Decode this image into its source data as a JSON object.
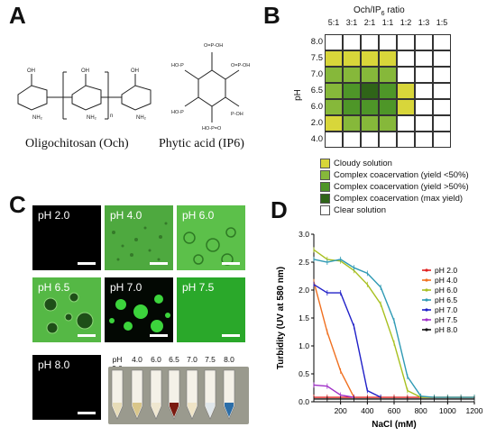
{
  "panels": {
    "a": "A",
    "b": "B",
    "c": "C",
    "d": "D"
  },
  "panel_a": {
    "och_caption": "Oligochitosan (Och)",
    "ip6_caption": "Phytic acid (IP6)"
  },
  "panel_b": {
    "title_prefix": "Och/IP",
    "title_sub": "6",
    "title_suffix": " ratio",
    "columns": [
      "5:1",
      "3:1",
      "2:1",
      "1:1",
      "1:2",
      "1:3",
      "1:5"
    ],
    "rows": [
      "8.0",
      "7.5",
      "7.0",
      "6.5",
      "6.0",
      "2.0",
      "4.0"
    ],
    "ylabel": "pH",
    "grid": [
      [
        "clear",
        "clear",
        "clear",
        "clear",
        "clear",
        "clear",
        "clear"
      ],
      [
        "cloudy",
        "cloudy",
        "cloudy",
        "cloudy",
        "clear",
        "clear",
        "clear"
      ],
      [
        "lt50",
        "lt50",
        "lt50",
        "lt50",
        "clear",
        "clear",
        "clear"
      ],
      [
        "lt50",
        "gt50",
        "max",
        "gt50",
        "cloudy",
        "clear",
        "clear"
      ],
      [
        "lt50",
        "gt50",
        "gt50",
        "gt50",
        "cloudy",
        "clear",
        "clear"
      ],
      [
        "cloudy",
        "lt50",
        "lt50",
        "lt50",
        "clear",
        "clear",
        "clear"
      ],
      [
        "clear",
        "clear",
        "clear",
        "clear",
        "clear",
        "clear",
        "clear"
      ]
    ],
    "colors": {
      "clear": "#ffffff",
      "cloudy": "#d8d63a",
      "lt50": "#86b83a",
      "gt50": "#4e9628",
      "max": "#2f6418"
    },
    "legend": [
      {
        "key": "cloudy",
        "label": "Cloudy solution"
      },
      {
        "key": "lt50",
        "label": "Complex coacervation (yield <50%)"
      },
      {
        "key": "gt50",
        "label": "Complex coacervation (yield >50%)"
      },
      {
        "key": "max",
        "label": "Complex coacervation (max yield)"
      },
      {
        "key": "clear",
        "label": "Clear solution"
      }
    ]
  },
  "panel_c": {
    "tiles": [
      "pH 2.0",
      "pH 4.0",
      "pH 6.0",
      "pH 6.5",
      "pH 7.0",
      "pH 7.5",
      "pH 8.0"
    ],
    "photo_labels": [
      "pH 2.0",
      "4.0",
      "6.0",
      "6.5",
      "7.0",
      "7.5",
      "8.0"
    ]
  },
  "chart_data": {
    "type": "line",
    "xlabel": "NaCl (mM)",
    "ylabel": "Turbidity (UV at 580 nm)",
    "xlim": [
      0,
      1200
    ],
    "ylim": [
      0,
      3.0
    ],
    "xticks": [
      200,
      400,
      600,
      800,
      1000,
      1200
    ],
    "yticks": [
      0.0,
      0.5,
      1.0,
      1.5,
      2.0,
      2.5,
      3.0
    ],
    "legend_position": "right",
    "series": [
      {
        "name": "pH 2.0",
        "color": "#e02020",
        "x": [
          0,
          100,
          200,
          300,
          400,
          500,
          600,
          700,
          800,
          900,
          1000,
          1100,
          1200
        ],
        "y": [
          0.08,
          0.08,
          0.08,
          0.08,
          0.08,
          0.08,
          0.08,
          0.08,
          0.08,
          0.08,
          0.08,
          0.08,
          0.08
        ]
      },
      {
        "name": "pH 4.0",
        "color": "#f07020",
        "x": [
          0,
          100,
          200,
          300
        ],
        "y": [
          2.15,
          1.25,
          0.55,
          0.08
        ]
      },
      {
        "name": "pH 6.0",
        "color": "#a8c020",
        "x": [
          0,
          100,
          200,
          300,
          400,
          500,
          600,
          700,
          800,
          900,
          1000,
          1100,
          1200
        ],
        "y": [
          2.72,
          2.55,
          2.52,
          2.35,
          2.1,
          1.75,
          1.05,
          0.2,
          0.08,
          0.08,
          0.08,
          0.08,
          0.08
        ]
      },
      {
        "name": "pH 6.5",
        "color": "#2f9ab4",
        "x": [
          0,
          100,
          200,
          300,
          400,
          500,
          600,
          700,
          800,
          900,
          1000,
          1100,
          1200
        ],
        "y": [
          2.55,
          2.5,
          2.55,
          2.4,
          2.3,
          2.05,
          1.45,
          0.45,
          0.1,
          0.08,
          0.08,
          0.08,
          0.08
        ]
      },
      {
        "name": "pH 7.0",
        "color": "#2020c8",
        "x": [
          0,
          100,
          200,
          300,
          400,
          500
        ],
        "y": [
          2.1,
          1.95,
          1.95,
          1.35,
          0.2,
          0.08
        ]
      },
      {
        "name": "pH 7.5",
        "color": "#a030c8",
        "x": [
          0,
          100,
          200,
          300
        ],
        "y": [
          0.3,
          0.28,
          0.12,
          0.08
        ]
      },
      {
        "name": "pH 8.0",
        "color": "#111111",
        "x": [
          0,
          100,
          200,
          300,
          400,
          500,
          600,
          700,
          800,
          900,
          1000,
          1100,
          1200
        ],
        "y": [
          0.05,
          0.05,
          0.05,
          0.05,
          0.05,
          0.05,
          0.05,
          0.05,
          0.05,
          0.05,
          0.05,
          0.05,
          0.05
        ]
      }
    ]
  }
}
